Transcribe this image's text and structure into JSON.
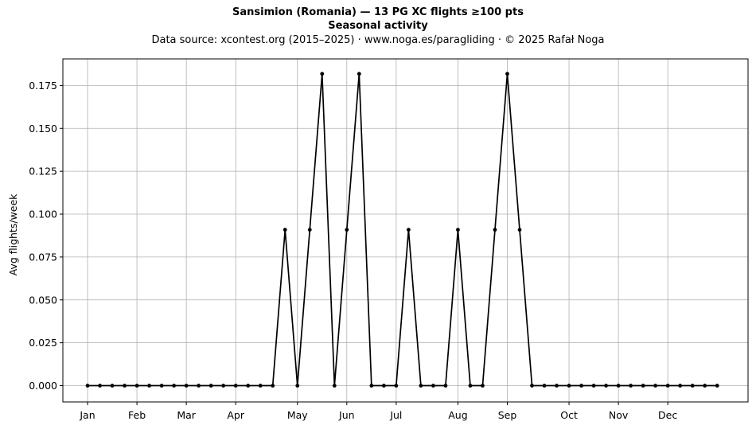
{
  "chart_data": {
    "type": "line",
    "title": "Sansimion (Romania)  —  13 PG XC flights ≥100 pts",
    "subtitle": "Seasonal activity",
    "source_line": "Data source: xcontest.org (2015–2025)  ·  www.noga.es/paragliding  ·  © 2025 Rafał Noga",
    "xlabel": "",
    "ylabel": "Avg flights/week",
    "x_week_range": [
      -2,
      53.5
    ],
    "ylim": [
      -0.0095,
      0.1905
    ],
    "yticks": [
      0.0,
      0.025,
      0.05,
      0.075,
      0.1,
      0.125,
      0.15,
      0.175
    ],
    "ytick_labels": [
      "0.000",
      "0.025",
      "0.050",
      "0.075",
      "0.100",
      "0.125",
      "0.150",
      "0.175"
    ],
    "month_ticks": [
      {
        "label": "Jan",
        "week": 0
      },
      {
        "label": "Feb",
        "week": 4
      },
      {
        "label": "Mar",
        "week": 8
      },
      {
        "label": "Apr",
        "week": 12
      },
      {
        "label": "May",
        "week": 17
      },
      {
        "label": "Jun",
        "week": 21
      },
      {
        "label": "Jul",
        "week": 25
      },
      {
        "label": "Aug",
        "week": 30
      },
      {
        "label": "Sep",
        "week": 34
      },
      {
        "label": "Oct",
        "week": 39
      },
      {
        "label": "Nov",
        "week": 43
      },
      {
        "label": "Dec",
        "week": 47
      }
    ],
    "grid": true,
    "series": [
      {
        "color": "#000000",
        "x": [
          0,
          1,
          2,
          3,
          4,
          5,
          6,
          7,
          8,
          9,
          10,
          11,
          12,
          13,
          14,
          15,
          16,
          17,
          18,
          19,
          20,
          21,
          22,
          23,
          24,
          25,
          26,
          27,
          28,
          29,
          30,
          31,
          32,
          33,
          34,
          35,
          36,
          37,
          38,
          39,
          40,
          41,
          42,
          43,
          44,
          45,
          46,
          47,
          48,
          49,
          50,
          51
        ],
        "values": [
          0,
          0,
          0,
          0,
          0,
          0,
          0,
          0,
          0,
          0,
          0,
          0,
          0,
          0,
          0,
          0,
          0.0909,
          0,
          0.0909,
          0.1818,
          0,
          0.0909,
          0.1818,
          0,
          0,
          0,
          0.0909,
          0,
          0,
          0,
          0.0909,
          0,
          0,
          0.0909,
          0.1818,
          0.0909,
          0,
          0,
          0,
          0,
          0,
          0,
          0,
          0,
          0,
          0,
          0,
          0,
          0,
          0,
          0,
          0
        ]
      }
    ]
  }
}
